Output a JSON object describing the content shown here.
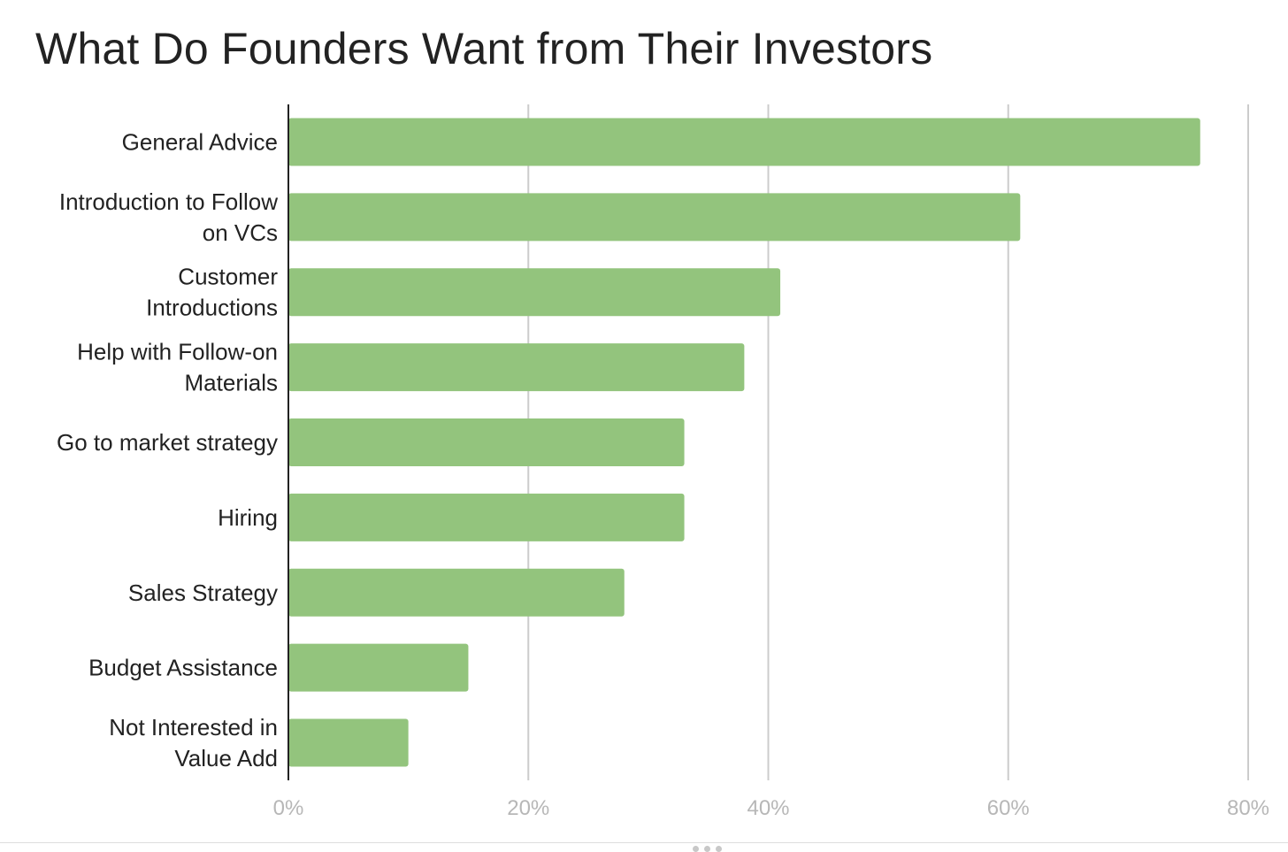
{
  "chart_data": {
    "type": "bar",
    "orientation": "horizontal",
    "title": "What Do Founders Want from Their Investors",
    "categories": [
      [
        "General Advice"
      ],
      [
        "Introduction to Follow",
        "on VCs"
      ],
      [
        "Customer",
        "Introductions"
      ],
      [
        "Help with Follow-on",
        "Materials"
      ],
      [
        "Go to market strategy"
      ],
      [
        "Hiring"
      ],
      [
        "Sales Strategy"
      ],
      [
        "Budget Assistance"
      ],
      [
        "Not Interested in",
        "Value Add"
      ]
    ],
    "values": [
      76,
      61,
      41,
      38,
      33,
      33,
      28,
      15,
      10
    ],
    "value_unit": "%",
    "xlim": [
      0,
      80
    ],
    "x_ticks": [
      0,
      20,
      40,
      60,
      80
    ],
    "x_tick_labels": [
      "0%",
      "20%",
      "40%",
      "60%",
      "80%"
    ],
    "grid": true,
    "legend": "none",
    "colors": {
      "bar": "#93c47d",
      "grid": "#cccccc",
      "axis": "#222222",
      "tick_label": "#b7b7b7"
    }
  }
}
